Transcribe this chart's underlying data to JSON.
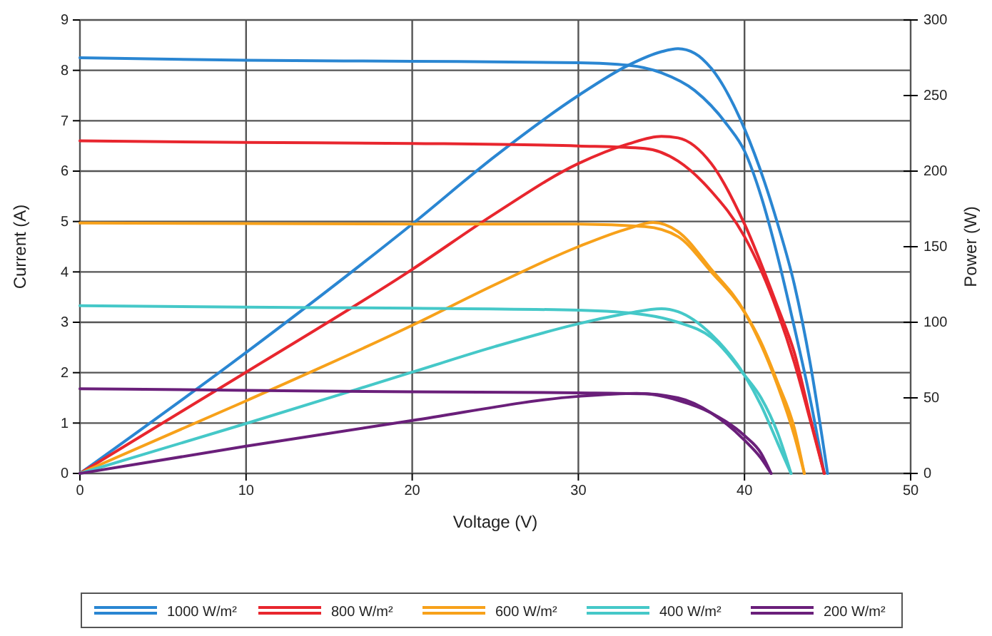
{
  "chart_data": {
    "type": "line",
    "xlabel": "Voltage (V)",
    "ylabel": "Current (A)",
    "y2label": "Power (W)",
    "xlim": [
      0,
      50
    ],
    "xticks": [
      0,
      10,
      20,
      30,
      40,
      50
    ],
    "ylim": [
      0,
      9
    ],
    "yticks": [
      0,
      1,
      2,
      3,
      4,
      5,
      6,
      7,
      8,
      9
    ],
    "y2lim": [
      0,
      300
    ],
    "y2ticks": [
      0,
      50,
      100,
      150,
      200,
      250,
      300
    ],
    "grid": true,
    "legend": "bottom",
    "marker": "none",
    "line_style": "solid",
    "series": [
      {
        "name": "1000 W/m²",
        "color": "#2a86d2",
        "x": [
          0,
          10,
          20,
          30,
          33,
          35,
          37,
          39,
          40,
          41,
          42,
          43,
          44,
          44.8
        ],
        "values": [
          8.25,
          8.2,
          8.18,
          8.15,
          8.1,
          7.95,
          7.6,
          6.9,
          6.4,
          5.5,
          4.3,
          2.9,
          1.4,
          0
        ]
      },
      {
        "color": "#2a86d2",
        "axis": "y2",
        "x": [
          0,
          10,
          20,
          25,
          30,
          33,
          35,
          36,
          37,
          38,
          40,
          42,
          43,
          44,
          45
        ],
        "values": [
          0,
          80,
          165,
          210,
          250,
          270,
          279,
          281,
          278,
          268,
          228,
          165,
          125,
          70,
          0
        ]
      },
      {
        "name": "800 W/m²",
        "color": "#e8262e",
        "x": [
          0,
          10,
          20,
          30,
          34,
          36,
          38,
          40,
          42,
          43,
          44,
          44.8
        ],
        "values": [
          6.6,
          6.57,
          6.55,
          6.5,
          6.45,
          6.2,
          5.6,
          4.7,
          3.2,
          2.2,
          1,
          0
        ]
      },
      {
        "color": "#e8262e",
        "axis": "y2",
        "x": [
          0,
          10,
          20,
          25,
          30,
          33,
          35,
          36,
          38,
          40,
          42,
          43,
          44,
          44.8
        ],
        "values": [
          0,
          67,
          135,
          172,
          205,
          218,
          223,
          222,
          205,
          165,
          110,
          80,
          35,
          0
        ]
      },
      {
        "name": "600 W/m²",
        "color": "#f7a11a",
        "x": [
          0,
          10,
          20,
          30,
          34,
          36,
          38,
          40,
          41,
          42,
          43,
          43.6
        ],
        "values": [
          4.97,
          4.96,
          4.95,
          4.95,
          4.9,
          4.7,
          4,
          3.2,
          2.6,
          1.8,
          0.9,
          0
        ]
      },
      {
        "color": "#f7a11a",
        "axis": "y2",
        "x": [
          0,
          10,
          20,
          25,
          30,
          33,
          34.5,
          36,
          38,
          40,
          41,
          42,
          43,
          43.6
        ],
        "values": [
          0,
          48,
          98,
          125,
          150,
          162,
          166,
          160,
          135,
          107,
          85,
          58,
          25,
          0
        ]
      },
      {
        "name": "400 W/m²",
        "color": "#45c8c8",
        "x": [
          0,
          10,
          20,
          30,
          34,
          36,
          38,
          40,
          41,
          42,
          42.8
        ],
        "values": [
          3.33,
          3.3,
          3.28,
          3.24,
          3.15,
          3,
          2.7,
          1.95,
          1.5,
          0.8,
          0
        ]
      },
      {
        "color": "#45c8c8",
        "axis": "y2",
        "x": [
          0,
          10,
          20,
          25,
          30,
          33,
          35,
          36,
          38,
          40,
          41,
          42,
          42.8
        ],
        "values": [
          0,
          33,
          67,
          84,
          99,
          106,
          109,
          107,
          92,
          65,
          45,
          20,
          0
        ]
      },
      {
        "name": "200 W/m²",
        "color": "#6a1f7a",
        "x": [
          0,
          10,
          20,
          30,
          34,
          36,
          38,
          40,
          41,
          41.6
        ],
        "values": [
          1.68,
          1.65,
          1.62,
          1.6,
          1.58,
          1.45,
          1.2,
          0.75,
          0.4,
          0
        ]
      },
      {
        "color": "#6a1f7a",
        "axis": "y2",
        "x": [
          0,
          10,
          20,
          30,
          33.5,
          36,
          38,
          40,
          41,
          41.6
        ],
        "values": [
          0,
          18,
          35,
          51,
          53,
          50,
          40,
          22,
          10,
          0
        ]
      }
    ]
  }
}
